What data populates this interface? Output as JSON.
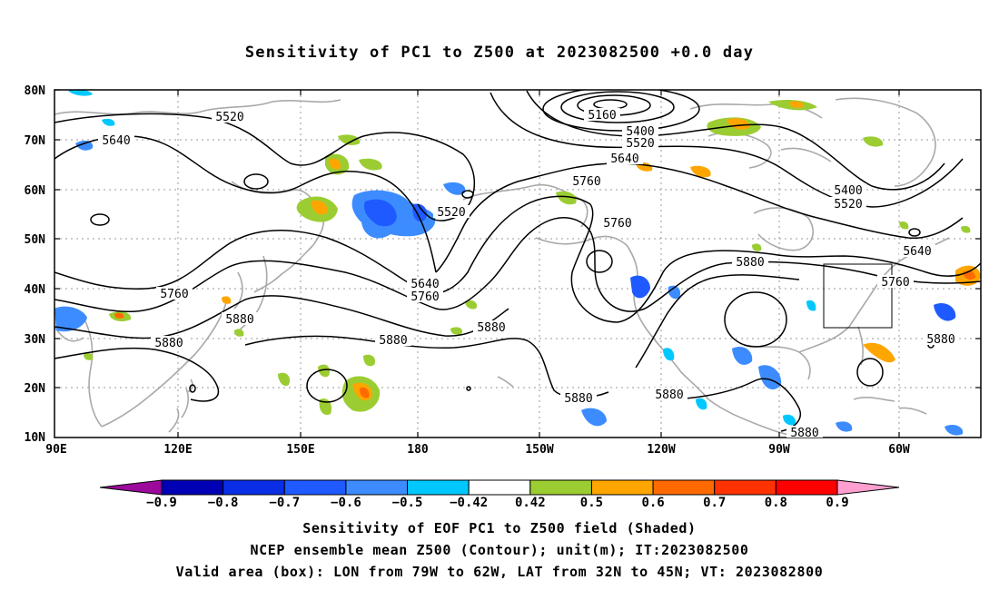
{
  "title": "Sensitivity of PC1 to Z500 at 2023082500 +0.0 day",
  "lat_labels": [
    "80N",
    "70N",
    "60N",
    "50N",
    "40N",
    "30N",
    "20N",
    "10N"
  ],
  "lon_labels": [
    "90E",
    "120E",
    "150E",
    "180",
    "150W",
    "120W",
    "90W",
    "60W"
  ],
  "contour_labels": [
    {
      "text": "5520"
    },
    {
      "text": "5640"
    },
    {
      "text": "5160"
    },
    {
      "text": "5400"
    },
    {
      "text": "5520"
    },
    {
      "text": "5640"
    },
    {
      "text": "5760"
    },
    {
      "text": "5520"
    },
    {
      "text": "5760"
    },
    {
      "text": "5640"
    },
    {
      "text": "5760"
    },
    {
      "text": "5880"
    },
    {
      "text": "5760"
    },
    {
      "text": "5880"
    },
    {
      "text": "5880"
    },
    {
      "text": "5880"
    },
    {
      "text": "5880"
    },
    {
      "text": "5880"
    },
    {
      "text": "5880"
    },
    {
      "text": "5880"
    },
    {
      "text": "5400"
    },
    {
      "text": "5520"
    },
    {
      "text": "5640"
    },
    {
      "text": "5760"
    },
    {
      "text": "5880"
    }
  ],
  "colorbar": {
    "colors": [
      "#9b0a9b",
      "#0000b4",
      "#0a2de6",
      "#1e5aff",
      "#3c8cff",
      "#00c8ff",
      "#ffffff",
      "#9bcd32",
      "#ffa500",
      "#ff6a00",
      "#ff3200",
      "#ff0000",
      "#ff9fd0"
    ],
    "labels": [
      "−0.9",
      "−0.8",
      "−0.7",
      "−0.6",
      "−0.5",
      "−0.42",
      "0.42",
      "0.5",
      "0.6",
      "0.7",
      "0.8",
      "0.9"
    ]
  },
  "captions": [
    "Sensitivity of EOF PC1 to Z500 field (Shaded)",
    "NCEP ensemble mean Z500 (Contour); unit(m); IT:2023082500",
    "Valid area (box): LON from 79W to 62W, LAT from 32N to 45N; VT: 2023082800"
  ]
}
